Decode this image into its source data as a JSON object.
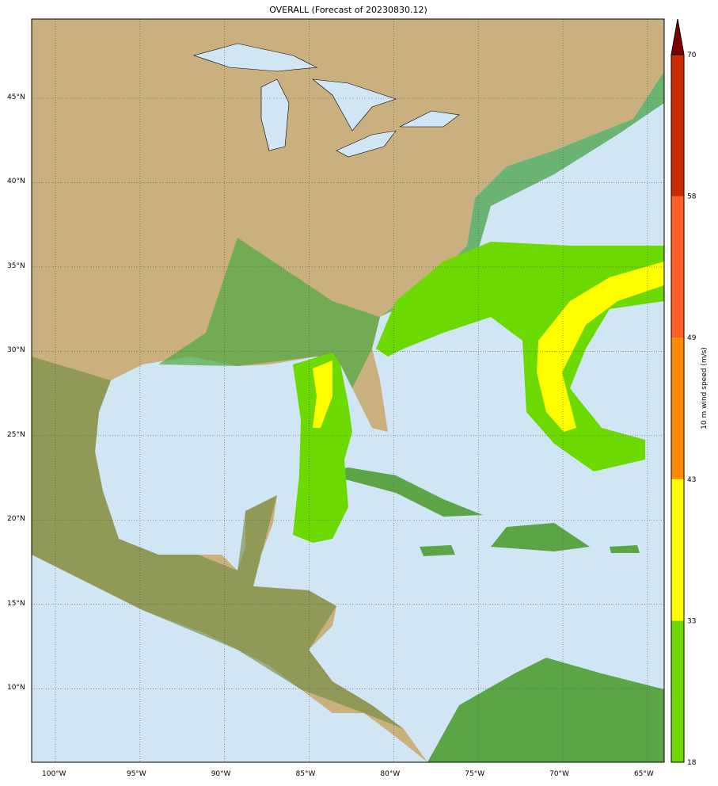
{
  "title": "OVERALL (Forecast of 20230830.12)",
  "map": {
    "lon_labels": [
      "100°W",
      "95°W",
      "90°W",
      "85°W",
      "80°W",
      "75°W",
      "70°W",
      "65°W"
    ],
    "lon_values": [
      -100,
      -95,
      -90,
      -85,
      -80,
      -75,
      -70,
      -65
    ],
    "lat_labels": [
      "10°N",
      "15°N",
      "20°N",
      "25°N",
      "30°N",
      "35°N",
      "40°N",
      "45°N"
    ],
    "lat_values": [
      10,
      15,
      20,
      25,
      30,
      35,
      40,
      45
    ],
    "colors": {
      "ocean": "#d0e6f5",
      "land": "#d9b98a",
      "lowland": "#4faa45"
    }
  },
  "colorbar": {
    "label": "10 m wind speed (m/s)",
    "ticks": [
      "18",
      "33",
      "43",
      "49",
      "58",
      "70"
    ],
    "levels": [
      18,
      33,
      43,
      49,
      58,
      70
    ],
    "colors": [
      "#6cd900",
      "#ffff00",
      "#ff8c00",
      "#ff5e24",
      "#cd2a00"
    ],
    "extend_color": "#7a0000"
  }
}
